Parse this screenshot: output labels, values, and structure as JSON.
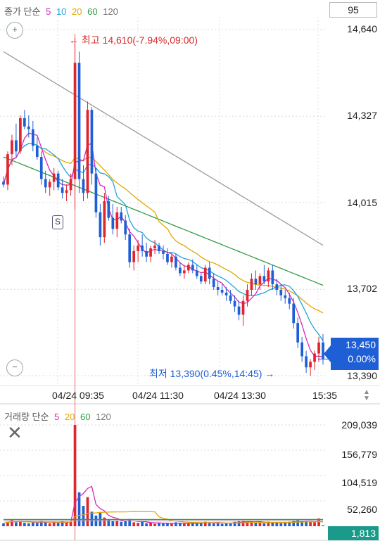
{
  "price_legend": {
    "title": "종가 단순",
    "ma": [
      "5",
      "10",
      "20",
      "60",
      "120"
    ]
  },
  "volume_legend": {
    "title": "거래량 단순",
    "ma": [
      "5",
      "20",
      "60",
      "120"
    ]
  },
  "period": "95",
  "price_axis": [
    "14,640",
    "14,327",
    "14,015",
    "13,702",
    "13,390"
  ],
  "volume_axis": [
    "209,039",
    "156,779",
    "104,519",
    "52,260"
  ],
  "time_axis": [
    "04/24 09:35",
    "04/24 11:30",
    "04/24 13:30",
    "15:35"
  ],
  "current_price": {
    "price": "13,450",
    "change": "0.00%"
  },
  "current_volume": "1,813",
  "annotations": {
    "high": "최고 14,610(-7.94%,09:00)",
    "low": "최저 13,390(0.45%,14:45)"
  },
  "signal_marker": "S",
  "colors": {
    "up": "#e0252e",
    "down": "#1f5fd6",
    "ma5": "#d629b8",
    "ma10": "#1fa4d8",
    "ma20": "#e0a800",
    "ma60": "#2e9d46",
    "ma120": "#9a9a9a",
    "price_tag": "#1f5fd6",
    "volume_tag": "#1a9a8a"
  },
  "icons": {
    "zoom_in": "zoom-in-icon",
    "zoom_out": "zoom-out-icon",
    "close": "close-icon",
    "scroll": "up-down-arrow-icon"
  },
  "chart_data": {
    "type": "candlestick",
    "y_range": [
      13390,
      14640
    ],
    "volume_range": [
      0,
      209039
    ],
    "ohlc": [
      [
        14090,
        14110,
        14070,
        14080
      ],
      [
        14080,
        14200,
        14060,
        14190
      ],
      [
        14190,
        14260,
        14150,
        14240
      ],
      [
        14240,
        14300,
        14180,
        14200
      ],
      [
        14200,
        14330,
        14190,
        14320
      ],
      [
        14320,
        14350,
        14280,
        14290
      ],
      [
        14290,
        14330,
        14250,
        14280
      ],
      [
        14280,
        14310,
        14200,
        14220
      ],
      [
        14220,
        14250,
        14170,
        14180
      ],
      [
        14180,
        14200,
        14080,
        14100
      ],
      [
        14100,
        14130,
        14050,
        14070
      ],
      [
        14070,
        14100,
        14040,
        14090
      ],
      [
        14090,
        14140,
        14060,
        14120
      ],
      [
        14120,
        14130,
        14060,
        14070
      ],
      [
        14070,
        14100,
        14030,
        14050
      ],
      [
        14050,
        14080,
        14020,
        14060
      ],
      [
        14060,
        14120,
        14040,
        14100
      ],
      [
        14100,
        14610,
        13990,
        14520
      ],
      [
        14520,
        14560,
        14050,
        14100
      ],
      [
        14100,
        14150,
        14020,
        14050
      ],
      [
        14050,
        14380,
        14030,
        14350
      ],
      [
        14350,
        14360,
        14080,
        14120
      ],
      [
        14120,
        14140,
        13960,
        13980
      ],
      [
        13980,
        14010,
        13860,
        13890
      ],
      [
        13890,
        14050,
        13870,
        14020
      ],
      [
        14020,
        14040,
        13950,
        13960
      ],
      [
        13960,
        14010,
        13900,
        13920
      ],
      [
        13920,
        14000,
        13890,
        13980
      ],
      [
        13980,
        14000,
        13940,
        13950
      ],
      [
        13950,
        13970,
        13880,
        13900
      ],
      [
        13900,
        13920,
        13780,
        13800
      ],
      [
        13800,
        13860,
        13770,
        13840
      ],
      [
        13840,
        13880,
        13800,
        13860
      ],
      [
        13860,
        13900,
        13820,
        13840
      ],
      [
        13840,
        13870,
        13800,
        13820
      ],
      [
        13820,
        13860,
        13800,
        13850
      ],
      [
        13850,
        13880,
        13830,
        13860
      ],
      [
        13860,
        13870,
        13830,
        13840
      ],
      [
        13840,
        13860,
        13810,
        13830
      ],
      [
        13830,
        13850,
        13790,
        13800
      ],
      [
        13800,
        13830,
        13780,
        13820
      ],
      [
        13820,
        13830,
        13770,
        13780
      ],
      [
        13780,
        13800,
        13750,
        13760
      ],
      [
        13760,
        13790,
        13740,
        13770
      ],
      [
        13770,
        13800,
        13760,
        13790
      ],
      [
        13790,
        13810,
        13760,
        13770
      ],
      [
        13770,
        13790,
        13740,
        13750
      ],
      [
        13750,
        13760,
        13720,
        13730
      ],
      [
        13730,
        13790,
        13720,
        13780
      ],
      [
        13780,
        13800,
        13720,
        13740
      ],
      [
        13740,
        13760,
        13700,
        13710
      ],
      [
        13710,
        13730,
        13680,
        13700
      ],
      [
        13700,
        13720,
        13680,
        13690
      ],
      [
        13690,
        13710,
        13660,
        13680
      ],
      [
        13680,
        13700,
        13650,
        13660
      ],
      [
        13660,
        13680,
        13620,
        13640
      ],
      [
        13640,
        13660,
        13590,
        13610
      ],
      [
        13610,
        13680,
        13570,
        13660
      ],
      [
        13660,
        13720,
        13640,
        13700
      ],
      [
        13700,
        13760,
        13680,
        13740
      ],
      [
        13740,
        13770,
        13700,
        13720
      ],
      [
        13720,
        13760,
        13700,
        13750
      ],
      [
        13750,
        13790,
        13720,
        13730
      ],
      [
        13730,
        13780,
        13710,
        13770
      ],
      [
        13770,
        13790,
        13700,
        13720
      ],
      [
        13720,
        13740,
        13680,
        13700
      ],
      [
        13700,
        13720,
        13660,
        13680
      ],
      [
        13680,
        13700,
        13650,
        13670
      ],
      [
        13670,
        13690,
        13630,
        13650
      ],
      [
        13650,
        13670,
        13560,
        13580
      ],
      [
        13580,
        13600,
        13490,
        13510
      ],
      [
        13510,
        13530,
        13440,
        13460
      ],
      [
        13460,
        13480,
        13400,
        13420
      ],
      [
        13420,
        13450,
        13390,
        13440
      ],
      [
        13440,
        13480,
        13410,
        13470
      ],
      [
        13470,
        13530,
        13440,
        13510
      ],
      [
        13510,
        13540,
        13430,
        13450
      ]
    ],
    "volume": [
      6000,
      9000,
      14000,
      8000,
      12000,
      7000,
      6000,
      9000,
      7000,
      12000,
      8000,
      6000,
      9000,
      7000,
      10000,
      8000,
      9000,
      209039,
      70000,
      42000,
      60000,
      30000,
      22000,
      28000,
      18000,
      14000,
      10000,
      12000,
      9000,
      11000,
      15000,
      8000,
      7000,
      9000,
      6000,
      8000,
      5000,
      6000,
      7000,
      6000,
      5000,
      8000,
      6000,
      5000,
      6000,
      7000,
      6000,
      8000,
      9000,
      7000,
      6000,
      8000,
      5000,
      7000,
      6000,
      9000,
      10000,
      12000,
      9000,
      11000,
      7000,
      8000,
      6000,
      9000,
      7000,
      8000,
      6000,
      7000,
      9000,
      12000,
      14000,
      10000,
      11000,
      9000,
      8000,
      16000,
      1813
    ]
  }
}
